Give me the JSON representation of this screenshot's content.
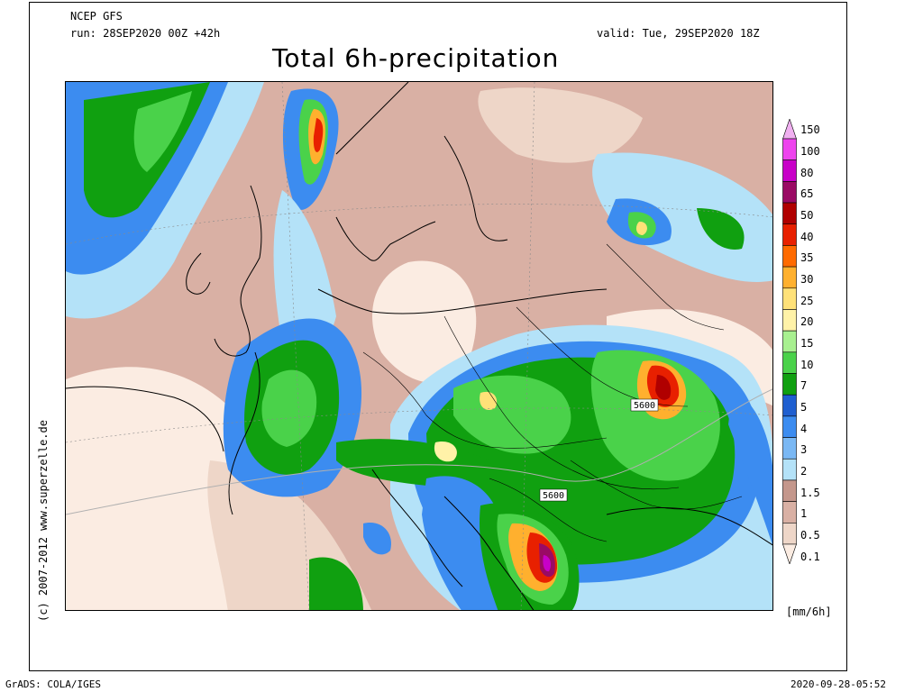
{
  "header": {
    "model": "NCEP GFS",
    "run": "run: 28SEP2020 00Z +42h",
    "valid": "valid: Tue, 29SEP2020 18Z",
    "title": "Total 6h-precipitation"
  },
  "legend": {
    "unit": "[mm/6h]",
    "levels": [
      {
        "label": "150",
        "color": "#f0b0f0"
      },
      {
        "label": "100",
        "color": "#ee44ee"
      },
      {
        "label": "80",
        "color": "#c800c8"
      },
      {
        "label": "65",
        "color": "#9a0a64"
      },
      {
        "label": "50",
        "color": "#b00000"
      },
      {
        "label": "40",
        "color": "#e82000"
      },
      {
        "label": "35",
        "color": "#ff6a00"
      },
      {
        "label": "30",
        "color": "#ffb02e"
      },
      {
        "label": "25",
        "color": "#ffe178"
      },
      {
        "label": "20",
        "color": "#fff2a8"
      },
      {
        "label": "15",
        "color": "#a8f090"
      },
      {
        "label": "10",
        "color": "#4ad24a"
      },
      {
        "label": "7",
        "color": "#10a010"
      },
      {
        "label": "5",
        "color": "#1f5fd0"
      },
      {
        "label": "4",
        "color": "#3c8cf0"
      },
      {
        "label": "3",
        "color": "#7ab8f4"
      },
      {
        "label": "2",
        "color": "#b4e2f8"
      },
      {
        "label": "1.5",
        "color": "#c4978c"
      },
      {
        "label": "1",
        "color": "#d9b0a4"
      },
      {
        "label": "0.5",
        "color": "#eed6c8"
      },
      {
        "label": "0.1",
        "color": "#fbece2"
      }
    ]
  },
  "map": {
    "contour_labels": [
      "5600",
      "5600"
    ]
  },
  "side_text": "(c) 2007-2012 www.superzelle.de",
  "footer": {
    "left": "GrADS: COLA/IGES",
    "right": "2020-09-28-05:52"
  }
}
